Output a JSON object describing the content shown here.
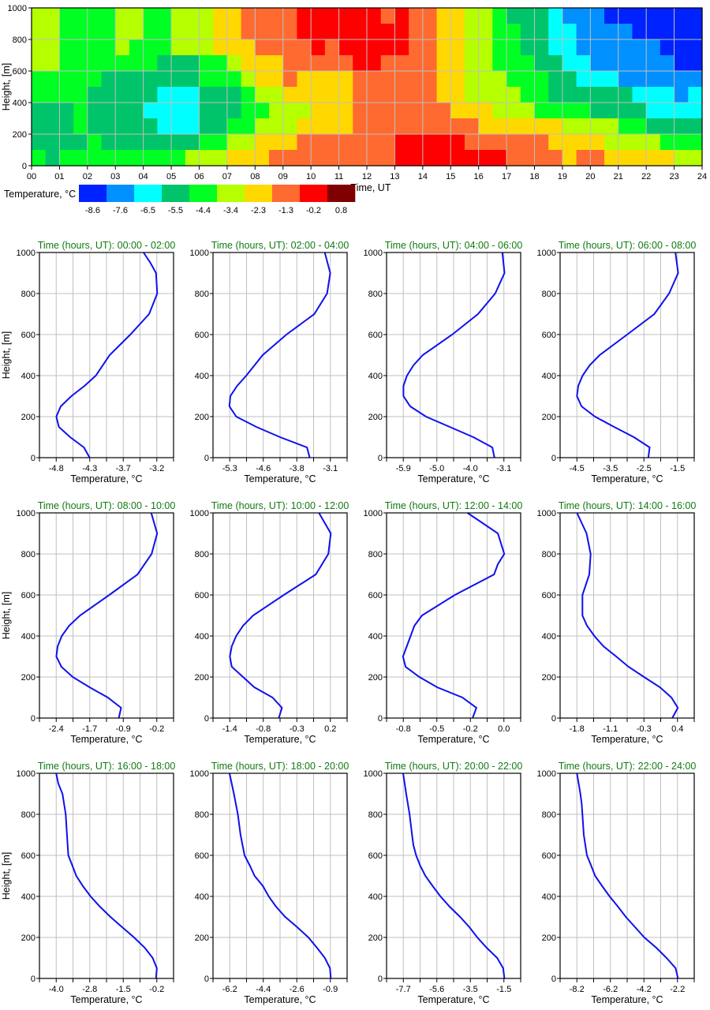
{
  "chart_data": [
    {
      "type": "heatmap",
      "xlabel": "Time, UT",
      "ylabel": "Height, [m]",
      "xlim": [
        0,
        24
      ],
      "ylim": [
        0,
        1000
      ],
      "x_tick_labels": [
        "00",
        "01",
        "02",
        "03",
        "04",
        "05",
        "06",
        "07",
        "08",
        "09",
        "10",
        "11",
        "12",
        "13",
        "14",
        "15",
        "16",
        "17",
        "18",
        "19",
        "20",
        "21",
        "22",
        "23",
        "24"
      ],
      "y_ticks": [
        0,
        200,
        400,
        600,
        800,
        1000
      ],
      "grid": true,
      "colorbar": {
        "label": "Temperature, °C",
        "levels": [
          "-8.6",
          "-7.6",
          "-6.5",
          "-5.5",
          "-4.4",
          "-3.4",
          "-2.3",
          "-1.3",
          "-0.2",
          "0.8"
        ],
        "colors": [
          "#0022ff",
          "#0090ff",
          "#00ffff",
          "#00c46a",
          "#00ff22",
          "#b6ff00",
          "#ffd800",
          "#ff6a30",
          "#ff0000",
          "#7f0000"
        ]
      },
      "cell_hours": 0.5,
      "cell_height_m": 100,
      "rows_top_to_bottom_class_index": [
        [
          5,
          5,
          4,
          4,
          4,
          4,
          5,
          5,
          4,
          4,
          5,
          5,
          5,
          6,
          6,
          7,
          7,
          7,
          7,
          8,
          8,
          8,
          8,
          8,
          8,
          7,
          8,
          7,
          7,
          6,
          6,
          5,
          5,
          4,
          3,
          3,
          3,
          2,
          1,
          1,
          1,
          0,
          0,
          0,
          0,
          0,
          0,
          0
        ],
        [
          5,
          5,
          4,
          4,
          4,
          4,
          5,
          5,
          4,
          4,
          5,
          5,
          5,
          6,
          6,
          7,
          7,
          7,
          7,
          8,
          8,
          8,
          8,
          8,
          8,
          8,
          8,
          7,
          7,
          6,
          6,
          5,
          5,
          4,
          4,
          3,
          3,
          2,
          2,
          1,
          1,
          1,
          1,
          0,
          0,
          0,
          0,
          0
        ],
        [
          5,
          5,
          4,
          4,
          4,
          4,
          5,
          4,
          4,
          4,
          5,
          5,
          5,
          6,
          6,
          6,
          7,
          7,
          7,
          7,
          8,
          7,
          8,
          8,
          8,
          8,
          8,
          7,
          7,
          6,
          6,
          5,
          5,
          4,
          4,
          3,
          3,
          2,
          2,
          1,
          1,
          1,
          1,
          1,
          1,
          0,
          0,
          0
        ],
        [
          5,
          5,
          4,
          4,
          4,
          4,
          4,
          4,
          4,
          3,
          3,
          3,
          4,
          4,
          5,
          6,
          6,
          6,
          7,
          7,
          7,
          7,
          7,
          8,
          8,
          7,
          7,
          7,
          7,
          6,
          6,
          5,
          5,
          4,
          4,
          4,
          3,
          3,
          2,
          2,
          1,
          1,
          1,
          1,
          1,
          1,
          0,
          0
        ],
        [
          4,
          4,
          4,
          4,
          4,
          3,
          3,
          3,
          3,
          3,
          3,
          3,
          4,
          4,
          4,
          5,
          6,
          6,
          7,
          6,
          6,
          6,
          6,
          7,
          7,
          7,
          7,
          7,
          7,
          6,
          6,
          5,
          5,
          5,
          4,
          4,
          4,
          3,
          3,
          2,
          2,
          2,
          1,
          1,
          1,
          1,
          1,
          1
        ],
        [
          4,
          4,
          4,
          4,
          3,
          3,
          3,
          3,
          3,
          2,
          2,
          2,
          3,
          3,
          3,
          4,
          5,
          5,
          6,
          6,
          6,
          6,
          6,
          7,
          7,
          7,
          7,
          7,
          7,
          6,
          6,
          5,
          5,
          5,
          5,
          4,
          4,
          3,
          3,
          3,
          3,
          3,
          3,
          2,
          2,
          2,
          1,
          2
        ],
        [
          3,
          3,
          3,
          4,
          3,
          3,
          3,
          3,
          2,
          2,
          2,
          2,
          3,
          3,
          3,
          4,
          4,
          5,
          5,
          5,
          6,
          6,
          6,
          7,
          7,
          7,
          7,
          7,
          7,
          7,
          6,
          6,
          6,
          5,
          5,
          5,
          4,
          4,
          4,
          4,
          3,
          3,
          3,
          3,
          2,
          2,
          2,
          2
        ],
        [
          3,
          3,
          3,
          4,
          3,
          3,
          3,
          3,
          3,
          2,
          2,
          2,
          3,
          3,
          4,
          4,
          5,
          5,
          5,
          6,
          6,
          6,
          6,
          7,
          7,
          7,
          7,
          7,
          7,
          7,
          7,
          7,
          6,
          6,
          6,
          6,
          6,
          6,
          5,
          5,
          5,
          5,
          4,
          4,
          3,
          3,
          3,
          3
        ],
        [
          3,
          3,
          3,
          3,
          4,
          3,
          3,
          3,
          3,
          3,
          3,
          3,
          4,
          4,
          5,
          5,
          6,
          6,
          6,
          7,
          7,
          7,
          7,
          7,
          7,
          7,
          8,
          8,
          8,
          8,
          8,
          7,
          7,
          7,
          7,
          7,
          7,
          6,
          6,
          6,
          6,
          5,
          5,
          5,
          5,
          4,
          4,
          4
        ],
        [
          4,
          3,
          4,
          4,
          4,
          4,
          4,
          4,
          4,
          4,
          4,
          5,
          5,
          5,
          6,
          6,
          6,
          7,
          7,
          7,
          7,
          7,
          7,
          7,
          7,
          7,
          8,
          8,
          8,
          8,
          8,
          8,
          8,
          8,
          7,
          7,
          7,
          7,
          6,
          7,
          7,
          6,
          6,
          6,
          6,
          6,
          5,
          5
        ]
      ]
    },
    {
      "type": "line",
      "title": "Time (hours, UT): 00:00 - 02:00",
      "xlabel": "Temperature, °C",
      "ylabel": "Height, [m]",
      "x_tick_labels": [
        "-4.8",
        "-4.3",
        "-3.7",
        "-3.2"
      ],
      "xlim": [
        -5.07,
        -2.93
      ],
      "ylim": [
        0,
        1000
      ],
      "y_ticks": [
        0,
        200,
        400,
        600,
        800,
        1000
      ],
      "height": [
        0,
        50,
        100,
        150,
        200,
        250,
        300,
        350,
        400,
        500,
        600,
        700,
        800,
        900,
        950,
        1000
      ],
      "temperature": [
        -4.27,
        -4.36,
        -4.58,
        -4.76,
        -4.8,
        -4.73,
        -4.56,
        -4.35,
        -4.17,
        -3.95,
        -3.62,
        -3.32,
        -3.19,
        -3.21,
        -3.3,
        -3.41
      ],
      "color": "#1010ee"
    },
    {
      "type": "line",
      "title": "Time (hours, UT): 02:00 - 04:00",
      "xlabel": "Temperature, °C",
      "ylabel": "",
      "x_tick_labels": [
        "-5.3",
        "-4.6",
        "-3.8",
        "-3.1"
      ],
      "xlim": [
        -5.67,
        -2.73
      ],
      "ylim": [
        0,
        1000
      ],
      "y_ticks": [
        0,
        200,
        400,
        600,
        800,
        1000
      ],
      "height": [
        0,
        50,
        100,
        150,
        200,
        250,
        300,
        350,
        400,
        500,
        600,
        700,
        800,
        900,
        1000
      ],
      "temperature": [
        -3.55,
        -3.61,
        -4.2,
        -4.72,
        -5.16,
        -5.31,
        -5.29,
        -5.14,
        -4.94,
        -4.58,
        -4.06,
        -3.45,
        -3.17,
        -3.1,
        -3.22
      ],
      "color": "#1010ee"
    },
    {
      "type": "line",
      "title": "Time (hours, UT): 04:00 - 06:00",
      "xlabel": "Temperature, °C",
      "ylabel": "",
      "x_tick_labels": [
        "-5.9",
        "-5.0",
        "-4.0",
        "-3.1"
      ],
      "xlim": [
        -6.37,
        -2.63
      ],
      "ylim": [
        0,
        1000
      ],
      "y_ticks": [
        0,
        200,
        400,
        600,
        800,
        1000
      ],
      "height": [
        0,
        50,
        100,
        150,
        200,
        250,
        300,
        350,
        400,
        450,
        500,
        600,
        700,
        800,
        900,
        1000
      ],
      "temperature": [
        -3.36,
        -3.42,
        -3.95,
        -4.61,
        -5.27,
        -5.71,
        -5.9,
        -5.9,
        -5.8,
        -5.62,
        -5.36,
        -4.54,
        -3.82,
        -3.34,
        -3.08,
        -3.14
      ],
      "color": "#1010ee"
    },
    {
      "type": "line",
      "title": "Time (hours, UT): 06:00 - 08:00",
      "xlabel": "Temperature, °C",
      "ylabel": "",
      "x_tick_labels": [
        "-4.5",
        "-3.5",
        "-2.5",
        "-1.5"
      ],
      "xlim": [
        -5.0,
        -1.0
      ],
      "ylim": [
        0,
        1000
      ],
      "y_ticks": [
        0,
        200,
        400,
        600,
        800,
        1000
      ],
      "height": [
        0,
        50,
        100,
        150,
        200,
        250,
        300,
        350,
        400,
        450,
        500,
        600,
        700,
        800,
        900,
        1000
      ],
      "temperature": [
        -2.37,
        -2.33,
        -2.8,
        -3.39,
        -3.96,
        -4.36,
        -4.5,
        -4.46,
        -4.33,
        -4.12,
        -3.82,
        -3.0,
        -2.19,
        -1.75,
        -1.48,
        -1.56
      ],
      "color": "#1010ee"
    },
    {
      "type": "line",
      "title": "Time (hours, UT): 08:00 - 10:00",
      "xlabel": "Temperature, °C",
      "ylabel": "Height, [m]",
      "x_tick_labels": [
        "-2.4",
        "-1.7",
        "-0.9",
        "-0.2"
      ],
      "xlim": [
        -2.77,
        0.17
      ],
      "ylim": [
        0,
        1000
      ],
      "y_ticks": [
        0,
        200,
        400,
        600,
        800,
        1000
      ],
      "height": [
        0,
        50,
        100,
        150,
        200,
        250,
        300,
        350,
        400,
        450,
        500,
        600,
        700,
        800,
        900,
        1000
      ],
      "temperature": [
        -1.03,
        -0.98,
        -1.27,
        -1.67,
        -2.04,
        -2.29,
        -2.4,
        -2.37,
        -2.28,
        -2.12,
        -1.88,
        -1.24,
        -0.62,
        -0.31,
        -0.19,
        -0.32
      ],
      "color": "#1010ee"
    },
    {
      "type": "line",
      "title": "Time (hours, UT): 10:00 - 12:00",
      "xlabel": "Temperature, °C",
      "ylabel": "",
      "x_tick_labels": [
        "-1.4",
        "-0.8",
        "-0.3",
        "0.2"
      ],
      "xlim": [
        -1.67,
        0.47
      ],
      "ylim": [
        0,
        1000
      ],
      "y_ticks": [
        0,
        200,
        400,
        600,
        800,
        1000
      ],
      "height": [
        0,
        50,
        100,
        150,
        200,
        250,
        300,
        350,
        400,
        450,
        500,
        600,
        700,
        800,
        900,
        1000
      ],
      "temperature": [
        -0.62,
        -0.57,
        -0.72,
        -1.01,
        -1.19,
        -1.37,
        -1.4,
        -1.37,
        -1.3,
        -1.19,
        -1.03,
        -0.54,
        -0.03,
        0.17,
        0.21,
        0.02
      ],
      "color": "#1010ee"
    },
    {
      "type": "line",
      "title": "Time (hours, UT): 12:00 - 14:00",
      "xlabel": "Temperature, °C",
      "ylabel": "",
      "x_tick_labels": [
        "-0.8",
        "-0.5",
        "-0.2",
        "0.0"
      ],
      "xlim": [
        -0.93,
        0.13
      ],
      "ylim": [
        0,
        1000
      ],
      "y_ticks": [
        0,
        200,
        400,
        600,
        800,
        1000
      ],
      "height": [
        0,
        50,
        100,
        150,
        200,
        250,
        300,
        350,
        400,
        450,
        500,
        600,
        700,
        750,
        800,
        900,
        1000
      ],
      "temperature": [
        -0.25,
        -0.22,
        -0.33,
        -0.53,
        -0.67,
        -0.78,
        -0.8,
        -0.77,
        -0.74,
        -0.71,
        -0.65,
        -0.39,
        -0.08,
        -0.05,
        0.0,
        -0.05,
        -0.29
      ],
      "color": "#1010ee"
    },
    {
      "type": "line",
      "title": "Time (hours, UT): 14:00 - 16:00",
      "xlabel": "Temperature, °C",
      "ylabel": "",
      "x_tick_labels": [
        "-1.8",
        "-1.1",
        "-0.3",
        "0.4"
      ],
      "xlim": [
        -2.17,
        0.77
      ],
      "ylim": [
        0,
        1000
      ],
      "y_ticks": [
        0,
        200,
        400,
        600,
        800,
        1000
      ],
      "height": [
        0,
        50,
        100,
        150,
        200,
        250,
        300,
        350,
        400,
        450,
        500,
        550,
        600,
        700,
        800,
        900,
        1000
      ],
      "temperature": [
        0.29,
        0.41,
        0.27,
        0.02,
        -0.33,
        -0.67,
        -0.94,
        -1.22,
        -1.42,
        -1.58,
        -1.68,
        -1.68,
        -1.68,
        -1.53,
        -1.5,
        -1.59,
        -1.8
      ],
      "color": "#1010ee"
    },
    {
      "type": "line",
      "title": "Time (hours, UT): 16:00 - 18:00",
      "xlabel": "Temperature, °C",
      "ylabel": "Height, [m]",
      "x_tick_labels": [
        "-4.0",
        "-2.8",
        "-1.5",
        "-0.2"
      ],
      "xlim": [
        -4.63,
        0.43
      ],
      "ylim": [
        0,
        1000
      ],
      "y_ticks": [
        0,
        200,
        400,
        600,
        800,
        1000
      ],
      "height": [
        0,
        50,
        100,
        150,
        200,
        250,
        300,
        350,
        400,
        450,
        500,
        550,
        600,
        700,
        800,
        900,
        950,
        1000
      ],
      "temperature": [
        -0.23,
        -0.2,
        -0.36,
        -0.66,
        -1.06,
        -1.51,
        -1.95,
        -2.35,
        -2.7,
        -2.99,
        -3.24,
        -3.39,
        -3.54,
        -3.59,
        -3.64,
        -3.76,
        -3.92,
        -4.0
      ],
      "color": "#1010ee"
    },
    {
      "type": "line",
      "title": "Time (hours, UT): 18:00 - 20:00",
      "xlabel": "Temperature, °C",
      "ylabel": "",
      "x_tick_labels": [
        "-6.2",
        "-4.4",
        "-2.6",
        "-0.9"
      ],
      "xlim": [
        -7.08,
        -0.02
      ],
      "ylim": [
        0,
        1000
      ],
      "y_ticks": [
        0,
        200,
        400,
        600,
        800,
        1000
      ],
      "height": [
        0,
        50,
        100,
        150,
        200,
        250,
        300,
        350,
        400,
        450,
        500,
        550,
        600,
        700,
        800,
        900,
        1000
      ],
      "temperature": [
        -0.88,
        -0.92,
        -1.19,
        -1.61,
        -2.06,
        -2.65,
        -3.28,
        -3.76,
        -4.15,
        -4.45,
        -4.89,
        -5.14,
        -5.42,
        -5.63,
        -5.77,
        -5.98,
        -6.21
      ],
      "color": "#1010ee"
    },
    {
      "type": "line",
      "title": "Time (hours, UT): 20:00 - 22:00",
      "xlabel": "Temperature, °C",
      "ylabel": "",
      "x_tick_labels": [
        "-7.7",
        "-5.6",
        "-3.5",
        "-1.5"
      ],
      "xlim": [
        -8.73,
        -0.47
      ],
      "ylim": [
        0,
        1000
      ],
      "y_ticks": [
        0,
        200,
        400,
        600,
        800,
        1000
      ],
      "height": [
        0,
        50,
        100,
        150,
        200,
        250,
        300,
        350,
        400,
        450,
        500,
        550,
        600,
        650,
        700,
        800,
        900,
        1000
      ],
      "temperature": [
        -1.47,
        -1.55,
        -1.92,
        -2.57,
        -3.14,
        -3.63,
        -4.2,
        -4.85,
        -5.41,
        -5.89,
        -6.34,
        -6.66,
        -6.91,
        -7.08,
        -7.16,
        -7.31,
        -7.52,
        -7.71
      ],
      "color": "#1010ee"
    },
    {
      "type": "line",
      "title": "Time (hours, UT): 22:00 - 24:00",
      "xlabel": "Temperature, °C",
      "ylabel": "",
      "x_tick_labels": [
        "-8.2",
        "-6.2",
        "-4.2",
        "-2.2"
      ],
      "xlim": [
        -9.2,
        -1.2
      ],
      "ylim": [
        0,
        1000
      ],
      "y_ticks": [
        0,
        200,
        400,
        600,
        800,
        1000
      ],
      "height": [
        0,
        50,
        100,
        150,
        200,
        250,
        300,
        350,
        400,
        450,
        500,
        550,
        600,
        700,
        850,
        900,
        1000
      ],
      "temperature": [
        -2.17,
        -2.31,
        -2.85,
        -3.47,
        -4.18,
        -4.73,
        -5.28,
        -5.75,
        -6.25,
        -6.69,
        -7.11,
        -7.35,
        -7.6,
        -7.79,
        -7.91,
        -7.99,
        -8.2
      ],
      "color": "#1010ee"
    }
  ]
}
